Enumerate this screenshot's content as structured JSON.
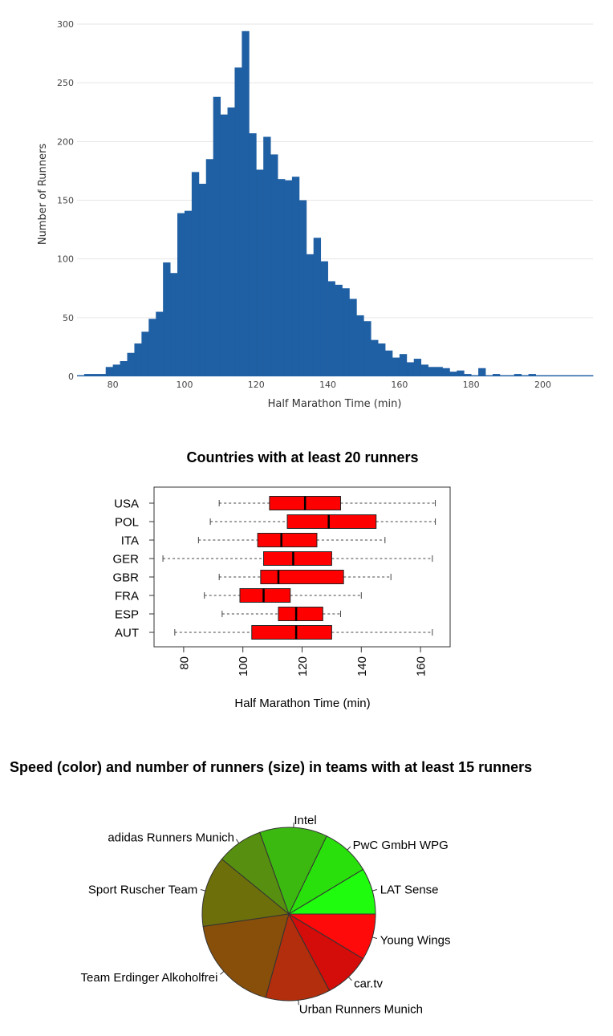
{
  "chart_data": [
    {
      "type": "bar",
      "subtype": "histogram",
      "title": "",
      "xlabel": "Half Marathon Time (min)",
      "ylabel": "Number of Runners",
      "xlim": [
        70,
        214
      ],
      "ylim": [
        0,
        300
      ],
      "x_ticks": [
        80,
        100,
        120,
        140,
        160,
        180,
        200
      ],
      "y_ticks": [
        0,
        50,
        100,
        150,
        200,
        250,
        300
      ],
      "grid": true,
      "bar_color": "#1f5fa3",
      "bin_width": 2,
      "bin_starts": [
        70,
        72,
        74,
        76,
        78,
        80,
        82,
        84,
        86,
        88,
        90,
        92,
        94,
        96,
        98,
        100,
        102,
        104,
        106,
        108,
        110,
        112,
        114,
        116,
        118,
        120,
        122,
        124,
        126,
        128,
        130,
        132,
        134,
        136,
        138,
        140,
        142,
        144,
        146,
        148,
        150,
        152,
        154,
        156,
        158,
        160,
        162,
        164,
        166,
        168,
        170,
        172,
        174,
        176,
        178,
        180,
        182,
        184,
        186,
        188,
        190,
        192,
        194,
        196,
        198,
        200,
        202,
        204,
        206,
        208,
        210,
        212
      ],
      "values": [
        1,
        2,
        2,
        2,
        8,
        10,
        13,
        20,
        28,
        38,
        49,
        55,
        97,
        88,
        139,
        141,
        174,
        164,
        185,
        238,
        223,
        229,
        263,
        294,
        207,
        176,
        204,
        189,
        168,
        167,
        170,
        150,
        104,
        118,
        98,
        81,
        78,
        75,
        66,
        52,
        47,
        31,
        28,
        22,
        16,
        19,
        12,
        15,
        10,
        8,
        8,
        7,
        4,
        5,
        2,
        1,
        7,
        1,
        2,
        1,
        1,
        2,
        1,
        2,
        1,
        1,
        1,
        1,
        1,
        1,
        1,
        1
      ]
    },
    {
      "type": "boxplot",
      "title": "Countries with at least 20 runners",
      "xlabel": "Half Marathon Time (min)",
      "xlim": [
        70,
        170
      ],
      "x_ticks": [
        80,
        100,
        120,
        140,
        160
      ],
      "box_color": "#ff0000",
      "categories": [
        "USA",
        "POL",
        "ITA",
        "GER",
        "GBR",
        "FRA",
        "ESP",
        "AUT"
      ],
      "stats": [
        {
          "name": "USA",
          "min": 92,
          "q1": 109,
          "median": 121,
          "q3": 133,
          "max": 165
        },
        {
          "name": "POL",
          "min": 89,
          "q1": 115,
          "median": 129,
          "q3": 145,
          "max": 165
        },
        {
          "name": "ITA",
          "min": 85,
          "q1": 105,
          "median": 113,
          "q3": 125,
          "max": 148
        },
        {
          "name": "GER",
          "min": 73,
          "q1": 107,
          "median": 117,
          "q3": 130,
          "max": 164
        },
        {
          "name": "GBR",
          "min": 92,
          "q1": 106,
          "median": 112,
          "q3": 134,
          "max": 150
        },
        {
          "name": "FRA",
          "min": 87,
          "q1": 99,
          "median": 107,
          "q3": 116,
          "max": 140
        },
        {
          "name": "ESP",
          "min": 93,
          "q1": 112,
          "median": 118,
          "q3": 127,
          "max": 133
        },
        {
          "name": "AUT",
          "min": 77,
          "q1": 103,
          "median": 118,
          "q3": 130,
          "max": 164
        }
      ]
    },
    {
      "type": "pie",
      "title": "Speed (color) and number of runners (size) in teams with at least 15 runners",
      "labels": [
        "LAT Sense",
        "PwC GmbH WPG",
        "Intel",
        "adidas Runners Munich",
        "Sport Ruscher Team",
        "Team Erdinger Alkoholfrei",
        "Urban Runners Munich",
        "car.tv",
        "Young Wings"
      ],
      "values": [
        15,
        16,
        22,
        15,
        23,
        32,
        21,
        15,
        15
      ],
      "colors": [
        "#1ffc0e",
        "#29e00c",
        "#3cb911",
        "#578f10",
        "#6d700a",
        "#874f0a",
        "#b22e0c",
        "#d40c0a",
        "#fe0a0a"
      ]
    }
  ]
}
